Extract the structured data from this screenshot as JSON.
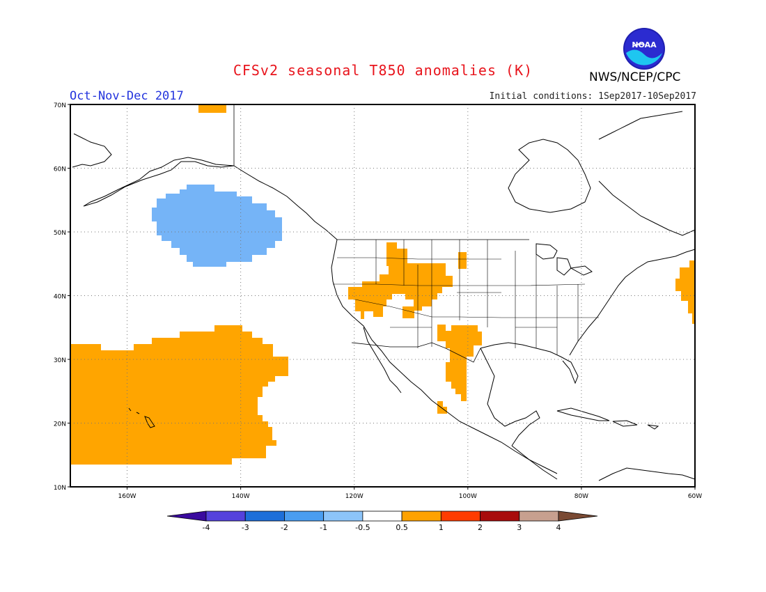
{
  "header": {
    "title": "CFSv2 seasonal T850 anomalies (K)",
    "agency": "NWS/NCEP/CPC",
    "season": "Oct-Nov-Dec 2017",
    "initial_conditions": "Initial conditions: 1Sep2017-10Sep2017",
    "logo_text": "NOAA"
  },
  "map": {
    "lon_range": [
      -170,
      -60
    ],
    "lat_range": [
      10,
      70
    ],
    "lat_labels": [
      "10N",
      "20N",
      "30N",
      "40N",
      "50N",
      "60N",
      "70N"
    ],
    "lon_labels": [
      "160W",
      "140W",
      "120W",
      "100W",
      "80W",
      "60W"
    ],
    "grid": "dotted",
    "colors": {
      "warm_anomaly": "#ffa500",
      "cool_anomaly": "#75b4f7",
      "coast": "#000000"
    },
    "regions": [
      {
        "name": "Gulf of Alaska",
        "category": "-1",
        "label": "cool"
      },
      {
        "name": "Central North Pacific / Hawaii",
        "category": "0.5",
        "label": "warm"
      },
      {
        "name": "Great Basin / Rockies",
        "category": "0.5",
        "label": "warm"
      },
      {
        "name": "Southern Plains / Texas",
        "category": "0.5",
        "label": "warm"
      },
      {
        "name": "Northwest Atlantic",
        "category": "0.5",
        "label": "warm"
      }
    ]
  },
  "colorbar": {
    "labels": [
      "-4",
      "-3",
      "-2",
      "-1",
      "-0.5",
      "0.5",
      "1",
      "2",
      "3",
      "4"
    ],
    "colors": [
      "#3a0a9e",
      "#5542dc",
      "#1e6fd9",
      "#4a9df0",
      "#8cc4f9",
      "#ffffff",
      "#ffa200",
      "#ff3c00",
      "#a80c0c",
      "#c7a08f",
      "#7a4a34"
    ]
  }
}
